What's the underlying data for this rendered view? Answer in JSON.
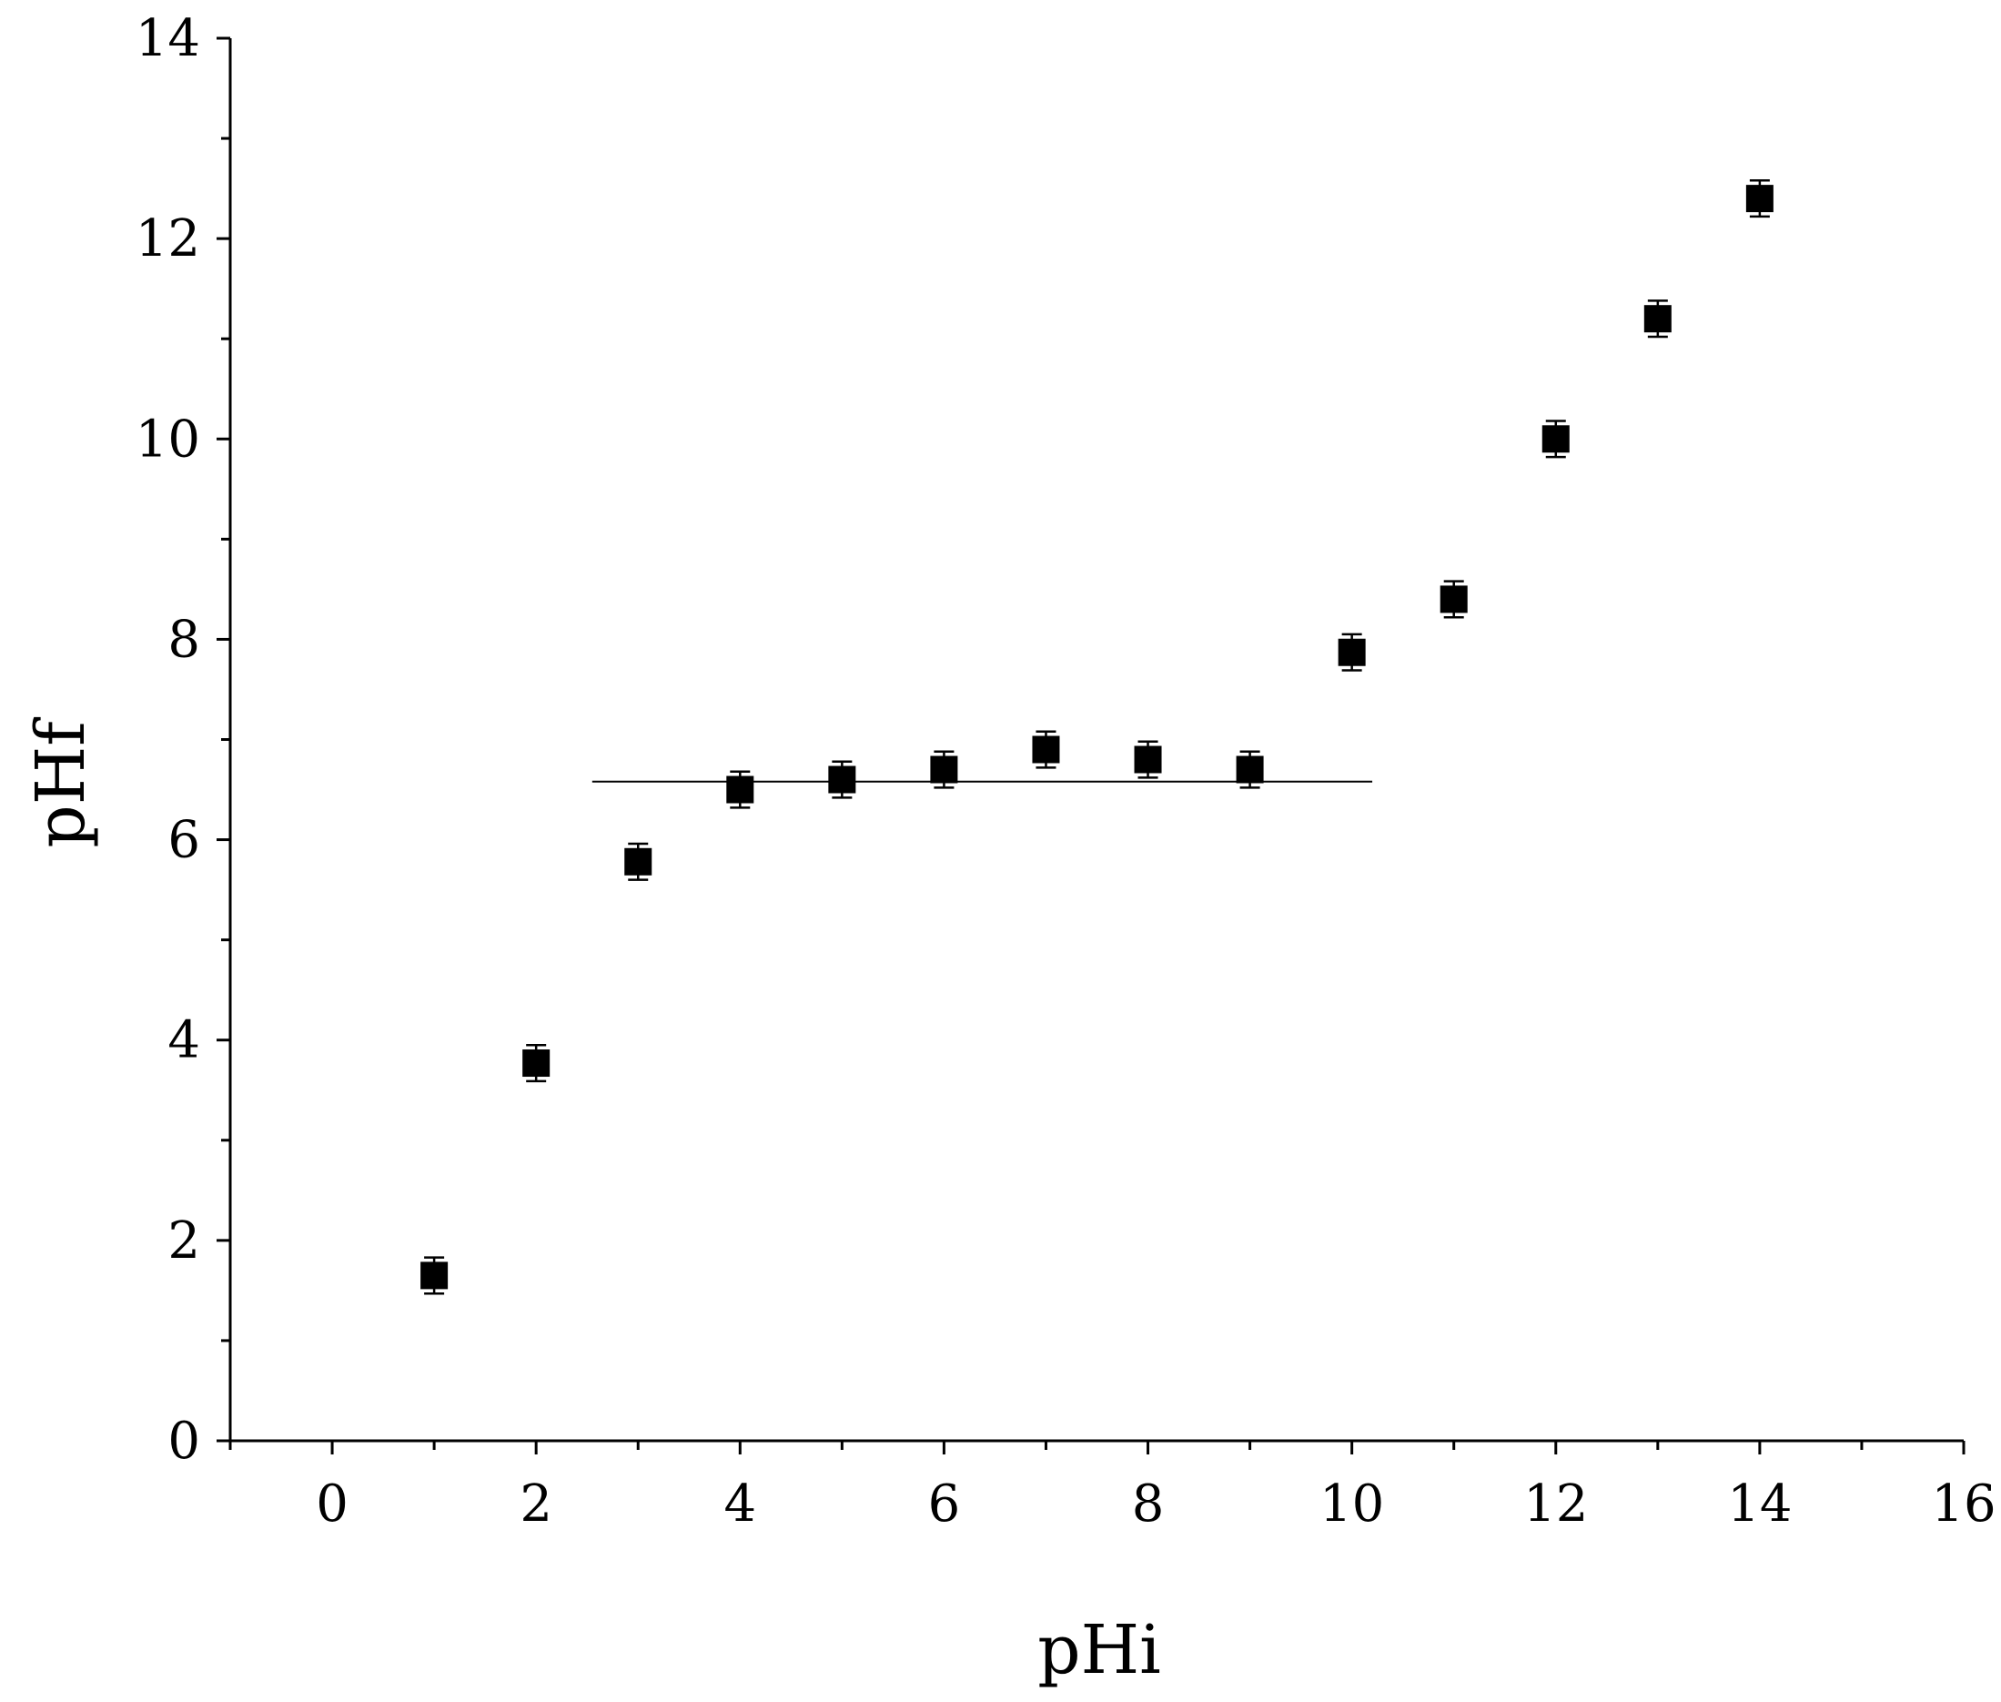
{
  "chart_data": {
    "type": "scatter",
    "title": "",
    "xlabel": "pHi",
    "ylabel": "pHf",
    "xlim": [
      -1,
      16
    ],
    "ylim": [
      0,
      14
    ],
    "x_ticks": [
      0,
      2,
      4,
      6,
      8,
      10,
      12,
      14,
      16
    ],
    "y_ticks": [
      0,
      2,
      4,
      6,
      8,
      10,
      12,
      14
    ],
    "grid": false,
    "legend": "none",
    "marker": "square",
    "color": "#000000",
    "series": [
      {
        "points": [
          {
            "x": 1,
            "y": 1.65,
            "err": 0.18
          },
          {
            "x": 2,
            "y": 3.77,
            "err": 0.18
          },
          {
            "x": 3,
            "y": 5.78,
            "err": 0.18
          },
          {
            "x": 4,
            "y": 6.5,
            "err": 0.18
          },
          {
            "x": 5,
            "y": 6.6,
            "err": 0.18
          },
          {
            "x": 6,
            "y": 6.7,
            "err": 0.18
          },
          {
            "x": 7,
            "y": 6.9,
            "err": 0.18
          },
          {
            "x": 8,
            "y": 6.8,
            "err": 0.18
          },
          {
            "x": 9,
            "y": 6.7,
            "err": 0.18
          },
          {
            "x": 10,
            "y": 7.87,
            "err": 0.18
          },
          {
            "x": 11,
            "y": 8.4,
            "err": 0.18
          },
          {
            "x": 12,
            "y": 10.0,
            "err": 0.18
          },
          {
            "x": 13,
            "y": 11.2,
            "err": 0.18
          },
          {
            "x": 14,
            "y": 12.4,
            "err": 0.18
          }
        ]
      }
    ],
    "reference_line": {
      "x_start": 2.55,
      "x_end": 10.2,
      "y": 6.58
    }
  }
}
